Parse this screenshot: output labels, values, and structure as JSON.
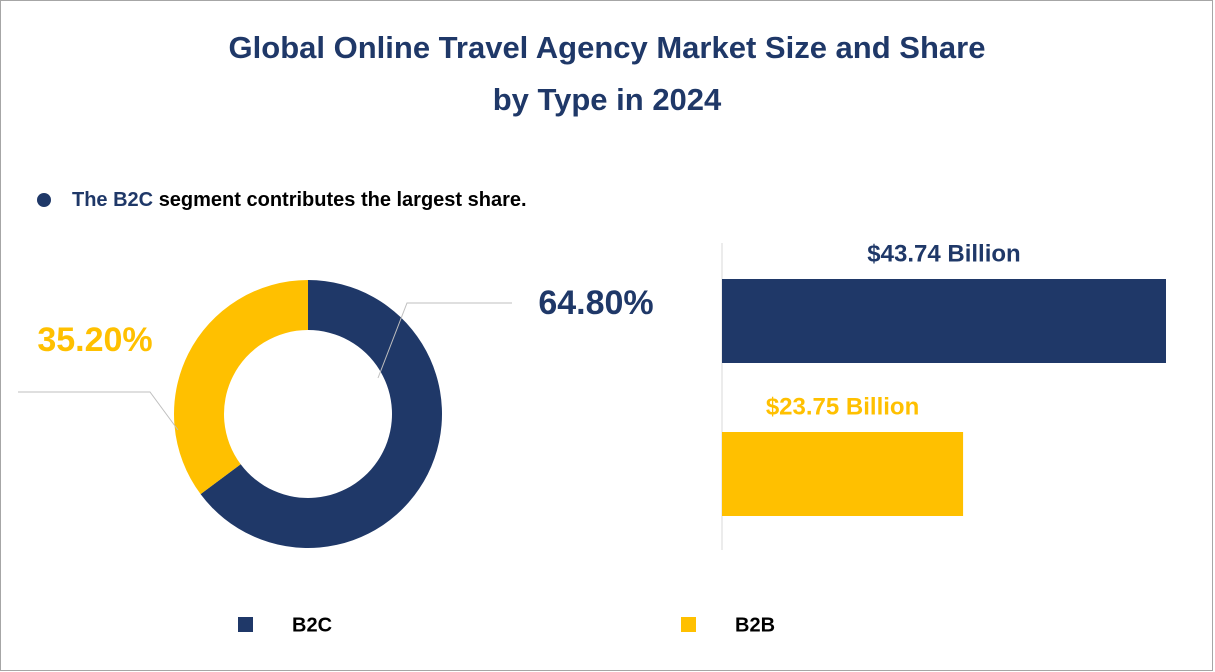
{
  "title": [
    "Global Online Travel Agency Market Size and Share",
    "by Type in 2024"
  ],
  "highlight": {
    "lead": "The B2C",
    "text": "segment contributes the largest share."
  },
  "chart_data": [
    {
      "type": "donut",
      "categories": [
        "B2C",
        "B2B"
      ],
      "values": [
        64.8,
        35.2
      ],
      "value_labels": [
        "64.80%",
        "35.20%"
      ],
      "colors": [
        "#1f3868",
        "#ffc000"
      ],
      "legend": "bottom"
    },
    {
      "type": "bar",
      "orientation": "horizontal",
      "categories": [
        "B2C",
        "B2B"
      ],
      "values": [
        43.74,
        23.75
      ],
      "value_labels": [
        "$43.74  Billion",
        "$23.75 Billion"
      ],
      "colors": [
        "#1f3868",
        "#ffc000"
      ]
    }
  ]
}
